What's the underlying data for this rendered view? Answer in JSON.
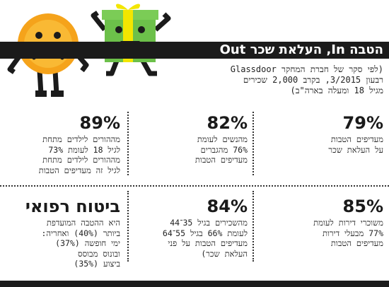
{
  "header": {
    "title": "הטבה In, העלאת שכר Out"
  },
  "subtitle": {
    "lines": [
      "(לפי סקר של חברת המחקר Glassdoor",
      "רבעון 3/2015, בקרב 2,000 שכירים",
      "מגיל 18 ומעלה בארה\"ב)"
    ]
  },
  "stats": [
    {
      "big": "79%",
      "lines": [
        "מעדיפים הטבות",
        "על העלאת שכר"
      ]
    },
    {
      "big": "82%",
      "lines": [
        "מהנשים לעומת",
        "76% מהגברים",
        "מעדיפים הטבות"
      ]
    },
    {
      "big": "89%",
      "lines": [
        "מההורים לילדים מתחת",
        "לגיל 18 לעומת 73%",
        "מההורים לילדים מתחת",
        "לגיל זה מעדיפים הטבות"
      ]
    },
    {
      "big": "85%",
      "lines": [
        "משוכרי דירות לעומת",
        "77% מבעלי דירות",
        "מעדיפים הטבות"
      ]
    },
    {
      "big": "84%",
      "lines": [
        "מהשכירים בגיל 35־44",
        "לעומת 66% בגיל 55־64",
        "מעדיפים הטבות על פני",
        "העלאת שכר)"
      ]
    },
    {
      "big": "ביטוח רפואי",
      "lines": [
        "היא ההטבה המועדפת",
        "ביותר (40%) ואחריה:",
        "ימי חופשה (37%)",
        "ובונוס מבוסס",
        "ביצוע (35%)"
      ]
    }
  ],
  "art": {
    "sad_coin_icon": "sad-coin-character",
    "gift_icon": "happy-gift-character",
    "colors": {
      "coin": "#f7a51c",
      "gift_green": "#6cc04a",
      "gift_yellow": "#f3e600",
      "dark": "#1b1b1b"
    }
  }
}
